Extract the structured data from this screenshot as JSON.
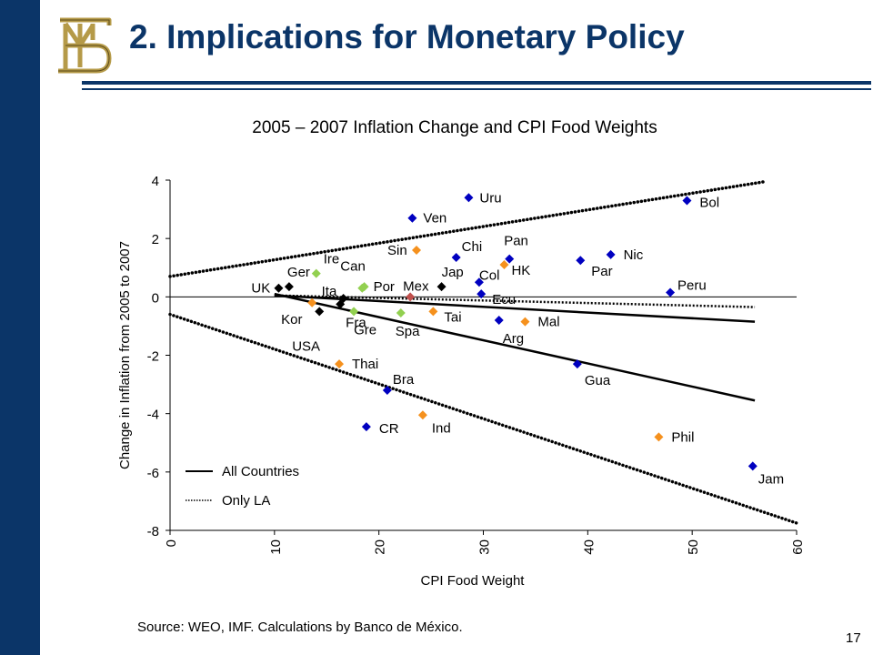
{
  "title": "2. Implications for Monetary Policy",
  "source": "Source: WEO, IMF. Calculations by Banco de México.",
  "page_number": "17",
  "colors": {
    "navy": "#0b3568",
    "logo_gold": "#b59a48",
    "latin_america": "#0000c0",
    "asia": "#f5911e",
    "europe_green": "#92d050",
    "advanced": "#000000",
    "mexico": "#c0504d"
  },
  "chart_data": {
    "type": "scatter",
    "title": "2005 – 2007 Inflation Change and CPI Food Weights",
    "xlabel": "CPI Food Weight",
    "ylabel": "Change in Inflation from 2005 to 2007",
    "xlim": [
      0,
      60
    ],
    "ylim": [
      -8,
      4
    ],
    "xticks": [
      "0",
      "10",
      "20",
      "30",
      "40",
      "50",
      "60"
    ],
    "yticks": [
      "4",
      "2",
      "0",
      "-2",
      "-4",
      "-6",
      "-8"
    ],
    "grid": false,
    "legend_position": "bottom-left",
    "points": [
      {
        "label": "UK",
        "x": 10.4,
        "y": 0.3,
        "color": "#000000"
      },
      {
        "label": "Ger",
        "x": 11.4,
        "y": 0.35,
        "color": "#000000"
      },
      {
        "label": "Kor",
        "x": 13.6,
        "y": -0.2,
        "color": "#f5911e"
      },
      {
        "label": "USA",
        "x": 14.3,
        "y": -0.5,
        "color": "#000000"
      },
      {
        "label": "Ire",
        "x": 14.0,
        "y": 0.8,
        "color": "#92d050"
      },
      {
        "label": "Fra",
        "x": 16.3,
        "y": -0.25,
        "color": "#000000"
      },
      {
        "label": "Ita",
        "x": 16.6,
        "y": -0.05,
        "color": "#000000"
      },
      {
        "label": "Gre",
        "x": 17.6,
        "y": -0.5,
        "color": "#92d050"
      },
      {
        "label": "Can",
        "x": 18.4,
        "y": 0.3,
        "color": "#92d050"
      },
      {
        "label": "Por",
        "x": 18.6,
        "y": 0.35,
        "color": "#92d050"
      },
      {
        "label": "Spa",
        "x": 22.1,
        "y": -0.55,
        "color": "#92d050"
      },
      {
        "label": "Mex",
        "x": 23.0,
        "y": 0.0,
        "color": "#c0504d"
      },
      {
        "label": "Sin",
        "x": 23.6,
        "y": 1.6,
        "color": "#f5911e"
      },
      {
        "label": "Ven",
        "x": 23.2,
        "y": 2.7,
        "color": "#0000c0"
      },
      {
        "label": "Tai",
        "x": 25.2,
        "y": -0.5,
        "color": "#f5911e"
      },
      {
        "label": "Jap",
        "x": 26.0,
        "y": 0.35,
        "color": "#000000"
      },
      {
        "label": "Chi",
        "x": 27.4,
        "y": 1.35,
        "color": "#0000c0"
      },
      {
        "label": "Uru",
        "x": 28.6,
        "y": 3.4,
        "color": "#0000c0"
      },
      {
        "label": "Col",
        "x": 29.6,
        "y": 0.5,
        "color": "#0000c0"
      },
      {
        "label": "Ecu",
        "x": 29.8,
        "y": 0.1,
        "color": "#0000c0"
      },
      {
        "label": "Pan",
        "x": 32.5,
        "y": 1.3,
        "color": "#0000c0"
      },
      {
        "label": "HK",
        "x": 32.0,
        "y": 1.1,
        "color": "#f5911e"
      },
      {
        "label": "Arg",
        "x": 31.5,
        "y": -0.8,
        "color": "#0000c0"
      },
      {
        "label": "Mal",
        "x": 34.0,
        "y": -0.85,
        "color": "#f5911e"
      },
      {
        "label": "Par",
        "x": 39.3,
        "y": 1.25,
        "color": "#0000c0"
      },
      {
        "label": "Nic",
        "x": 42.2,
        "y": 1.45,
        "color": "#0000c0"
      },
      {
        "label": "Gua",
        "x": 39.0,
        "y": -2.3,
        "color": "#0000c0"
      },
      {
        "label": "Peru",
        "x": 47.9,
        "y": 0.15,
        "color": "#0000c0"
      },
      {
        "label": "Bol",
        "x": 49.5,
        "y": 3.3,
        "color": "#0000c0"
      },
      {
        "label": "Thai",
        "x": 16.2,
        "y": -2.3,
        "color": "#f5911e"
      },
      {
        "label": "Bra",
        "x": 20.8,
        "y": -3.2,
        "color": "#0000c0"
      },
      {
        "label": "CR",
        "x": 18.8,
        "y": -4.45,
        "color": "#0000c0"
      },
      {
        "label": "Ind",
        "x": 24.2,
        "y": -4.05,
        "color": "#f5911e"
      },
      {
        "label": "Phil",
        "x": 46.8,
        "y": -4.8,
        "color": "#f5911e"
      },
      {
        "label": "Jam",
        "x": 55.8,
        "y": -5.8,
        "color": "#0000c0"
      }
    ],
    "series": [
      {
        "name": "All Countries",
        "style": "solid",
        "lines": [
          {
            "x": [
              10,
              56
            ],
            "y": [
              0.1,
              -3.55
            ]
          },
          {
            "x": [
              10,
              56
            ],
            "y": [
              0.05,
              -0.85
            ]
          }
        ]
      },
      {
        "name": "Only LA",
        "style": "dotted",
        "lines": [
          {
            "x": [
              10,
              56
            ],
            "y": [
              0.05,
              -0.35
            ]
          }
        ]
      }
    ],
    "bounds": [
      {
        "x": [
          0,
          57
        ],
        "y": [
          0.7,
          3.95
        ]
      },
      {
        "x": [
          0,
          60
        ],
        "y": [
          -0.6,
          -7.75
        ]
      }
    ]
  }
}
